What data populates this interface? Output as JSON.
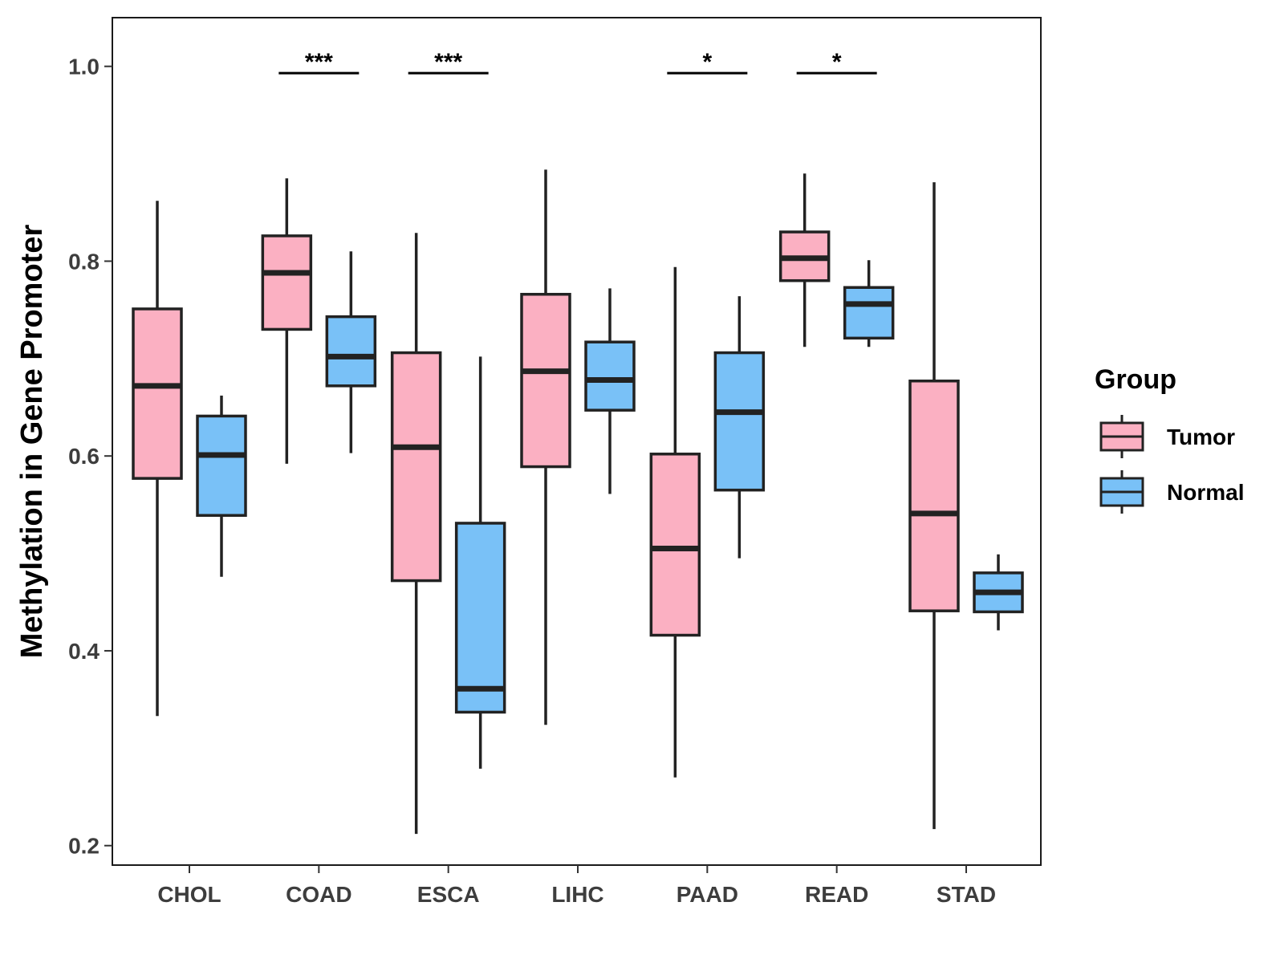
{
  "chart_data": {
    "type": "boxplot",
    "title": "",
    "xlabel": "",
    "ylabel": "Methylation in Gene Promoter",
    "ylim": [
      0.18,
      1.05
    ],
    "yticks": [
      "0.2",
      "0.4",
      "0.6",
      "0.8",
      "1.0"
    ],
    "ytick_values": [
      0.2,
      0.4,
      0.6,
      0.8,
      1.0
    ],
    "grid": false,
    "legend": {
      "title": "Group",
      "position": "right",
      "entries": [
        {
          "name": "Tumor",
          "color": "#FBB0C2"
        },
        {
          "name": "Normal",
          "color": "#79C1F7"
        }
      ]
    },
    "categories": [
      "CHOL",
      "COAD",
      "ESCA",
      "LIHC",
      "PAAD",
      "READ",
      "STAD"
    ],
    "series": [
      {
        "name": "Tumor",
        "color": "#FBB0C2",
        "boxes": [
          {
            "min": 0.333,
            "q1": 0.577,
            "median": 0.672,
            "q3": 0.751,
            "max": 0.862
          },
          {
            "min": 0.592,
            "q1": 0.73,
            "median": 0.788,
            "q3": 0.826,
            "max": 0.885
          },
          {
            "min": 0.212,
            "q1": 0.472,
            "median": 0.609,
            "q3": 0.706,
            "max": 0.829
          },
          {
            "min": 0.324,
            "q1": 0.589,
            "median": 0.687,
            "q3": 0.766,
            "max": 0.894
          },
          {
            "min": 0.27,
            "q1": 0.416,
            "median": 0.505,
            "q3": 0.602,
            "max": 0.794
          },
          {
            "min": 0.712,
            "q1": 0.78,
            "median": 0.803,
            "q3": 0.83,
            "max": 0.89
          },
          {
            "min": 0.217,
            "q1": 0.441,
            "median": 0.541,
            "q3": 0.677,
            "max": 0.881
          }
        ]
      },
      {
        "name": "Normal",
        "color": "#79C1F7",
        "boxes": [
          {
            "min": 0.476,
            "q1": 0.539,
            "median": 0.601,
            "q3": 0.641,
            "max": 0.662
          },
          {
            "min": 0.603,
            "q1": 0.672,
            "median": 0.702,
            "q3": 0.743,
            "max": 0.81
          },
          {
            "min": 0.279,
            "q1": 0.337,
            "median": 0.361,
            "q3": 0.531,
            "max": 0.702
          },
          {
            "min": 0.561,
            "q1": 0.647,
            "median": 0.678,
            "q3": 0.717,
            "max": 0.772
          },
          {
            "min": 0.495,
            "q1": 0.565,
            "median": 0.645,
            "q3": 0.706,
            "max": 0.764
          },
          {
            "min": 0.712,
            "q1": 0.721,
            "median": 0.756,
            "q3": 0.773,
            "max": 0.801
          },
          {
            "min": 0.421,
            "q1": 0.44,
            "median": 0.46,
            "q3": 0.48,
            "max": 0.499
          }
        ]
      }
    ],
    "significance": [
      {
        "category": "COAD",
        "label": "***",
        "y": 0.993
      },
      {
        "category": "ESCA",
        "label": "***",
        "y": 0.993
      },
      {
        "category": "PAAD",
        "label": "*",
        "y": 0.993
      },
      {
        "category": "READ",
        "label": "*",
        "y": 0.993
      }
    ]
  }
}
